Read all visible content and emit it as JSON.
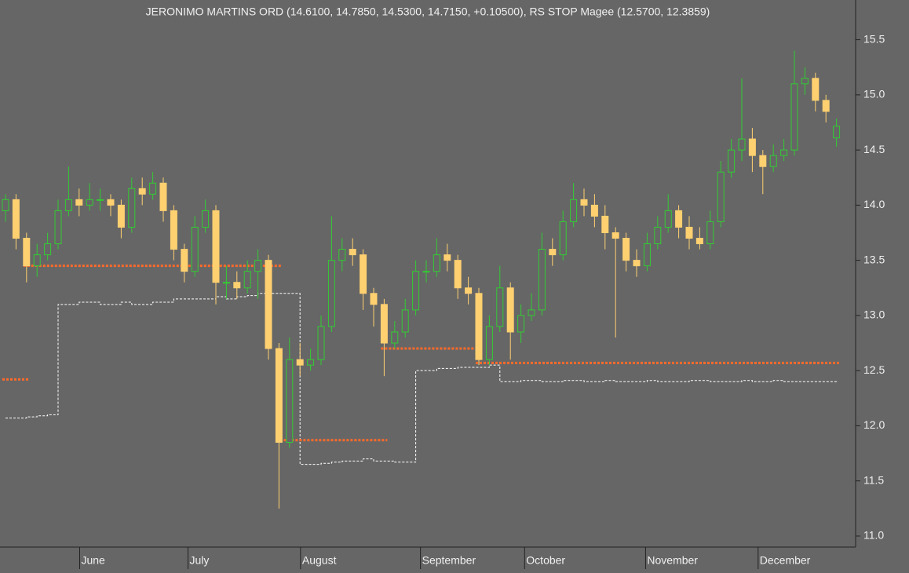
{
  "chart_data": {
    "type": "candlestick",
    "title": "JERONIMO MARTINS ORD (14.6100, 14.7850, 14.5300, 14.7150, +0.10500), RS STOP Magee (12.5700, 12.3859)",
    "up_color": "#33cc33",
    "down_color": "#ffd070",
    "open": [
      13.95,
      14.05,
      13.7,
      13.45,
      13.55,
      13.65,
      13.95,
      14.05,
      14.0,
      14.05,
      14.05,
      14.0,
      13.8,
      14.15,
      14.1,
      14.2,
      13.95,
      13.6,
      13.4,
      13.8,
      13.95,
      13.3,
      13.3,
      13.25,
      13.4,
      13.5,
      12.7,
      11.85,
      12.6,
      12.55,
      12.6,
      12.9,
      13.5,
      13.6,
      13.55,
      13.2,
      13.1,
      12.75,
      12.85,
      13.05,
      13.4,
      13.4,
      13.55,
      13.5,
      13.25,
      13.2,
      12.6,
      12.9,
      13.25,
      12.85,
      13.0,
      13.05,
      13.6,
      13.55,
      13.85,
      14.05,
      14.0,
      13.9,
      13.75,
      13.7,
      13.5,
      13.45,
      13.65,
      13.8,
      13.95,
      13.8,
      13.7,
      13.65,
      13.85,
      14.3,
      14.5,
      14.6,
      14.45,
      14.35,
      14.45,
      14.5,
      15.1,
      15.15,
      14.95,
      14.61
    ],
    "high": [
      14.1,
      14.1,
      13.75,
      13.65,
      13.75,
      14.05,
      14.35,
      14.15,
      14.2,
      14.15,
      14.1,
      14.05,
      14.25,
      14.25,
      14.3,
      14.25,
      14.0,
      13.65,
      13.9,
      14.05,
      14.0,
      13.45,
      13.4,
      13.5,
      13.6,
      13.55,
      12.75,
      12.8,
      12.75,
      12.7,
      13.0,
      13.9,
      13.7,
      13.7,
      13.6,
      13.25,
      13.15,
      12.95,
      13.15,
      13.5,
      13.5,
      13.7,
      13.65,
      13.55,
      13.35,
      13.25,
      13.0,
      13.45,
      13.3,
      13.1,
      13.2,
      13.75,
      13.7,
      13.95,
      14.2,
      14.15,
      14.1,
      14.0,
      13.8,
      13.75,
      13.6,
      13.75,
      13.9,
      14.1,
      14.0,
      13.9,
      13.8,
      13.95,
      14.4,
      14.6,
      15.15,
      14.7,
      14.5,
      14.55,
      14.6,
      15.4,
      15.25,
      15.2,
      15.0,
      14.785
    ],
    "low": [
      13.85,
      13.6,
      13.3,
      13.35,
      13.5,
      13.6,
      13.9,
      13.9,
      13.95,
      13.95,
      13.9,
      13.7,
      13.75,
      14.0,
      14.05,
      13.85,
      13.5,
      13.3,
      13.35,
      13.75,
      13.1,
      13.15,
      13.15,
      13.2,
      13.15,
      12.6,
      11.25,
      11.8,
      12.45,
      12.5,
      12.55,
      12.85,
      13.4,
      13.45,
      13.05,
      12.9,
      12.45,
      12.7,
      12.8,
      13.0,
      13.3,
      13.35,
      13.4,
      13.15,
      13.1,
      12.55,
      12.55,
      12.85,
      12.6,
      12.75,
      12.95,
      13.0,
      13.45,
      13.5,
      13.8,
      13.9,
      13.8,
      13.6,
      12.8,
      13.4,
      13.35,
      13.4,
      13.6,
      13.75,
      13.7,
      13.6,
      13.6,
      13.6,
      13.8,
      14.25,
      14.4,
      14.3,
      14.1,
      14.3,
      14.4,
      14.45,
      15.0,
      14.85,
      14.75,
      14.53
    ],
    "close": [
      14.05,
      13.7,
      13.45,
      13.55,
      13.65,
      13.95,
      14.05,
      14.0,
      14.05,
      14.05,
      14.0,
      13.8,
      14.15,
      14.1,
      14.2,
      13.95,
      13.6,
      13.4,
      13.8,
      13.95,
      13.3,
      13.3,
      13.25,
      13.4,
      13.5,
      12.7,
      11.85,
      12.6,
      12.55,
      12.6,
      12.9,
      13.5,
      13.6,
      13.55,
      13.2,
      13.1,
      12.75,
      12.85,
      13.05,
      13.4,
      13.4,
      13.55,
      13.5,
      13.25,
      13.2,
      12.6,
      12.9,
      13.25,
      12.85,
      13.0,
      13.05,
      13.6,
      13.55,
      13.85,
      14.05,
      14.0,
      13.9,
      13.75,
      13.7,
      13.5,
      13.45,
      13.65,
      13.8,
      13.95,
      13.8,
      13.7,
      13.65,
      13.85,
      14.3,
      14.5,
      14.6,
      14.45,
      14.35,
      14.45,
      14.5,
      15.1,
      15.15,
      14.95,
      14.85,
      14.715
    ],
    "stop_segments": [
      {
        "x": [
          0,
          2
        ],
        "value": 12.42,
        "color": "#ff6a2a"
      },
      {
        "x": [
          2,
          26
        ],
        "value": 13.45,
        "color": "#ff6a2a"
      },
      {
        "x": [
          26,
          36
        ],
        "value": 11.87,
        "color": "#ff6a2a"
      },
      {
        "x": [
          36,
          45
        ],
        "value": 12.7,
        "color": "#ff6a2a"
      },
      {
        "x": [
          45,
          79
        ],
        "value": 12.57,
        "color": "#ff6a2a"
      }
    ],
    "magee": {
      "color": "#ffffff",
      "values": [
        12.07,
        12.07,
        12.08,
        12.09,
        12.1,
        13.1,
        13.1,
        13.12,
        13.12,
        13.1,
        13.1,
        13.12,
        13.1,
        13.1,
        13.12,
        13.12,
        13.15,
        13.15,
        13.15,
        13.15,
        13.17,
        13.15,
        13.17,
        13.18,
        13.2,
        13.2,
        13.2,
        13.2,
        11.65,
        11.65,
        11.66,
        11.67,
        11.68,
        11.68,
        11.7,
        11.68,
        11.68,
        11.67,
        11.67,
        12.5,
        12.5,
        12.52,
        12.52,
        12.53,
        12.53,
        12.53,
        12.55,
        12.4,
        12.4,
        12.41,
        12.41,
        12.4,
        12.4,
        12.41,
        12.41,
        12.4,
        12.4,
        12.41,
        12.4,
        12.4,
        12.4,
        12.41,
        12.4,
        12.4,
        12.4,
        12.41,
        12.41,
        12.4,
        12.4,
        12.4,
        12.41,
        12.4,
        12.4,
        12.41,
        12.4,
        12.4,
        12.4,
        12.4,
        12.4,
        12.39
      ]
    },
    "ylim": [
      10.9,
      15.86
    ],
    "yticks": [
      {
        "value": 11,
        "label": "11.0"
      },
      11.5,
      {
        "value": 12,
        "label": "12.0"
      },
      12.5,
      {
        "value": 13,
        "label": "13.0"
      },
      13.5,
      {
        "value": 14,
        "label": "14.0"
      },
      14.5,
      {
        "value": 15,
        "label": "15.0"
      },
      15.5
    ],
    "xticks": [
      {
        "value": 7.2,
        "label": "June"
      },
      {
        "value": 17.5,
        "label": "July"
      },
      {
        "value": 28.2,
        "label": "August"
      },
      {
        "value": 39.6,
        "label": "September"
      },
      {
        "value": 49.5,
        "label": "October"
      },
      {
        "value": 61,
        "label": "November"
      },
      {
        "value": 71.7,
        "label": "December"
      }
    ]
  }
}
